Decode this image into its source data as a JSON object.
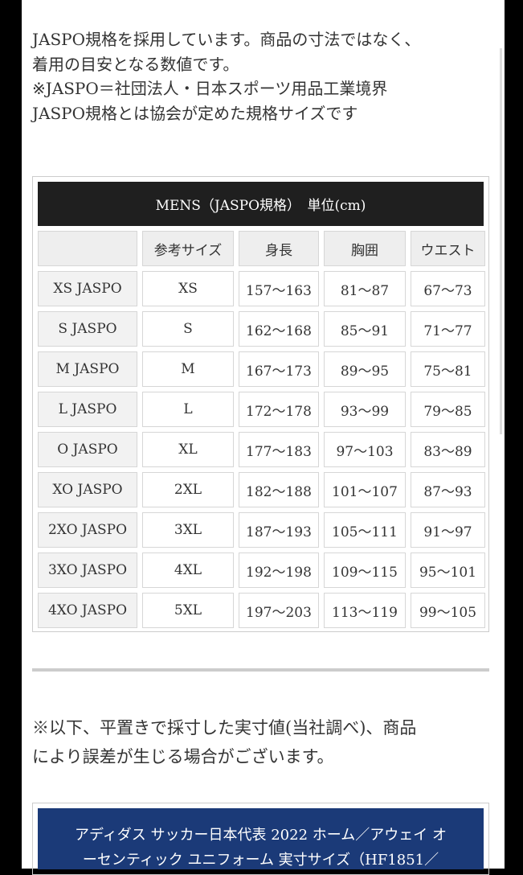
{
  "intro_lines": [
    "JASPO規格を採用しています。商品の寸法ではなく、",
    "着用の目安となる数値です。",
    "※JASPO＝社団法人・日本スポーツ用品工業境界",
    "JASPO規格とは協会が定めた規格サイズです"
  ],
  "table": {
    "title": "MENS（JASPO規格）　単位(cm)",
    "headers": [
      "",
      "参考サイズ",
      "身長",
      "胸囲",
      "ウエスト"
    ],
    "rows": [
      [
        "XS JASPO",
        "XS",
        "157〜163",
        "81〜87",
        "67〜73"
      ],
      [
        "S JASPO",
        "S",
        "162〜168",
        "85〜91",
        "71〜77"
      ],
      [
        "M JASPO",
        "M",
        "167〜173",
        "89〜95",
        "75〜81"
      ],
      [
        "L JASPO",
        "L",
        "172〜178",
        "93〜99",
        "79〜85"
      ],
      [
        "O JASPO",
        "XL",
        "177〜183",
        "97〜103",
        "83〜89"
      ],
      [
        "XO JASPO",
        "2XL",
        "182〜188",
        "101〜107",
        "87〜93"
      ],
      [
        "2XO JASPO",
        "3XL",
        "187〜193",
        "105〜111",
        "91〜97"
      ],
      [
        "3XO JASPO",
        "4XL",
        "192〜198",
        "109〜115",
        "95〜101"
      ],
      [
        "4XO JASPO",
        "5XL",
        "197〜203",
        "113〜119",
        "99〜105"
      ]
    ]
  },
  "note_lines": [
    "※以下、平置きで採寸した実寸値(当社調べ)、商品",
    "により誤差が生じる場合がございます。"
  ],
  "product_title_lines": [
    "アディダス サッカー日本代表 2022 ホーム／アウェイ オ",
    "ーセンティック ユニフォーム 実寸サイズ（HF1851／"
  ],
  "colors": {
    "header_bg": "#1f1f1f",
    "product_bg": "#1b3a78"
  }
}
